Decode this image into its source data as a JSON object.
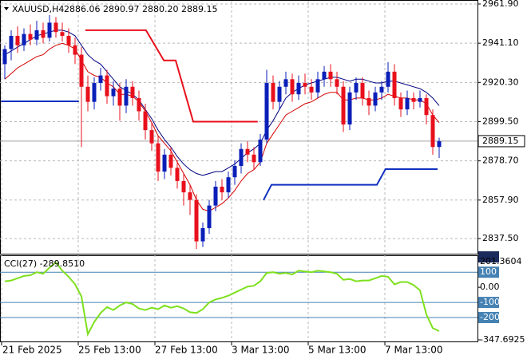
{
  "chart_data": [
    {
      "type": "candlestick",
      "symbol": "XAUUSD,H4",
      "ohlc_text": "2886.06 2890.97 2880.20 2889.15",
      "ylim": [
        2829.46,
        2964.02
      ],
      "yticks": [
        {
          "value": 2961.9,
          "label": "2961.90"
        },
        {
          "value": 2941.1,
          "label": "2941.10"
        },
        {
          "value": 2920.3,
          "label": "2920.30"
        },
        {
          "value": 2899.5,
          "label": "2899.50"
        },
        {
          "value": 2878.7,
          "label": "2878.70"
        },
        {
          "value": 2857.9,
          "label": "2857.90"
        },
        {
          "value": 2837.5,
          "label": "2837.50"
        }
      ],
      "xticks": [
        {
          "value": -0.5,
          "label": "21 Feb 2025"
        },
        {
          "value": 11.5,
          "label": "25 Feb 13:00"
        },
        {
          "value": 23.5,
          "label": "27 Feb 13:00"
        },
        {
          "value": 35.5,
          "label": "3 Mar 13:00"
        },
        {
          "value": 47.5,
          "label": "5 Mar 13:00"
        },
        {
          "value": 59.5,
          "label": "7 Mar 13:00"
        }
      ],
      "grid": true,
      "up_color": "#0a1fb8",
      "down_color": "#e8101c",
      "open": [
        2930,
        2938,
        2945,
        2940,
        2946,
        2943,
        2948,
        2944,
        2952,
        2947,
        2945,
        2940,
        2935,
        2918,
        2910,
        2920,
        2924,
        2913,
        2917,
        2908,
        2918,
        2912,
        2905,
        2895,
        2888,
        2873,
        2882,
        2875,
        2868,
        2862,
        2858,
        2836,
        2843,
        2855,
        2865,
        2862,
        2870,
        2876,
        2885,
        2882,
        2878,
        2890,
        2920,
        2910,
        2918,
        2922,
        2914,
        2920,
        2918,
        2915,
        2922,
        2926,
        2922,
        2918,
        2898,
        2915,
        2920,
        2912,
        2908,
        2915,
        2918,
        2926,
        2912,
        2906,
        2912,
        2910,
        2912,
        2903,
        2886.06
      ],
      "high": [
        2940,
        2948,
        2950,
        2949,
        2951,
        2953,
        2952,
        2956,
        2955,
        2952,
        2949,
        2944,
        2939,
        2924,
        2923,
        2928,
        2927,
        2921,
        2920,
        2922,
        2921,
        2916,
        2909,
        2899,
        2892,
        2885,
        2886,
        2879,
        2872,
        2866,
        2861,
        2846,
        2858,
        2868,
        2869,
        2873,
        2879,
        2888,
        2889,
        2886,
        2893,
        2927,
        2924,
        2921,
        2926,
        2925,
        2924,
        2925,
        2922,
        2926,
        2929,
        2930,
        2926,
        2921,
        2918,
        2923,
        2923,
        2916,
        2918,
        2921,
        2931,
        2930,
        2915,
        2916,
        2915,
        2916,
        2914,
        2906,
        2890.97
      ],
      "low": [
        2922,
        2932,
        2936,
        2937,
        2940,
        2940,
        2941,
        2942,
        2944,
        2942,
        2936,
        2930,
        2886,
        2905,
        2906,
        2916,
        2909,
        2908,
        2900,
        2904,
        2908,
        2900,
        2890,
        2884,
        2868,
        2869,
        2871,
        2864,
        2855,
        2850,
        2832,
        2833,
        2840,
        2852,
        2858,
        2859,
        2866,
        2872,
        2878,
        2874,
        2876,
        2888,
        2906,
        2906,
        2914,
        2910,
        2911,
        2914,
        2911,
        2912,
        2918,
        2918,
        2914,
        2894,
        2895,
        2911,
        2908,
        2903,
        2905,
        2911,
        2915,
        2908,
        2902,
        2903,
        2906,
        2907,
        2898,
        2882,
        2880.2
      ],
      "close": [
        2938,
        2945,
        2940,
        2946,
        2943,
        2948,
        2944,
        2952,
        2947,
        2945,
        2940,
        2935,
        2918,
        2910,
        2920,
        2924,
        2913,
        2917,
        2908,
        2918,
        2912,
        2905,
        2895,
        2888,
        2873,
        2882,
        2875,
        2868,
        2862,
        2858,
        2836,
        2843,
        2855,
        2865,
        2862,
        2870,
        2876,
        2885,
        2882,
        2878,
        2890,
        2920,
        2910,
        2918,
        2922,
        2914,
        2920,
        2918,
        2915,
        2922,
        2926,
        2922,
        2918,
        2898,
        2915,
        2920,
        2912,
        2908,
        2915,
        2918,
        2926,
        2912,
        2906,
        2912,
        2910,
        2912,
        2903,
        2886.06,
        2889.15
      ],
      "lines": [
        {
          "color": "#000080",
          "width": 1,
          "values": [
            2935,
            2937,
            2939,
            2941,
            2943,
            2945,
            2946,
            2947,
            2948,
            2948,
            2947,
            2945,
            2940,
            2935,
            2932,
            2930,
            2926,
            2922,
            2918,
            2916,
            2914,
            2911,
            2906,
            2901,
            2895,
            2890,
            2886,
            2881,
            2877,
            2874,
            2872,
            2871,
            2872,
            2873,
            2873,
            2875,
            2877,
            2880,
            2883,
            2885,
            2888,
            2895,
            2900,
            2906,
            2912,
            2915,
            2917,
            2919,
            2920,
            2921,
            2922,
            2923,
            2923,
            2922,
            2921,
            2922,
            2922,
            2921,
            2920,
            2920,
            2921,
            2921,
            2920,
            2919,
            2918,
            2917,
            2915,
            2912,
            2908
          ]
        },
        {
          "color": "#d40000",
          "width": 1,
          "values": [
            2922,
            2925,
            2928,
            2930,
            2932,
            2934,
            2935,
            2938,
            2940,
            2941,
            2940,
            2938,
            2932,
            2926,
            2924,
            2923,
            2920,
            2918,
            2914,
            2914,
            2913,
            2910,
            2905,
            2899,
            2892,
            2888,
            2884,
            2878,
            2872,
            2866,
            2858,
            2853,
            2852,
            2854,
            2856,
            2859,
            2863,
            2868,
            2872,
            2874,
            2878,
            2888,
            2893,
            2898,
            2903,
            2905,
            2907,
            2909,
            2910,
            2912,
            2914,
            2915,
            2915,
            2911,
            2911,
            2912,
            2912,
            2911,
            2911,
            2912,
            2914,
            2913,
            2912,
            2912,
            2911,
            2911,
            2909,
            2903,
            2899
          ]
        }
      ],
      "steps": [
        {
          "color": "#e8101c",
          "x": [
            12.6,
            22.1,
            24.9,
            26.75,
            29.5,
            39.6
          ],
          "values": [
            2948,
            2948,
            2932,
            2932,
            2899.5,
            2899.5
          ]
        },
        {
          "color": "#1030c0",
          "x": [
            -0.6,
            11.6
          ],
          "values": [
            2910.3,
            2910.3
          ]
        },
        {
          "color": "#1030c0",
          "x": [
            40.5,
            41.75,
            58.25,
            59.6,
            67.75
          ],
          "values": [
            2857.9,
            2866,
            2866,
            2874.3,
            2874.3
          ]
        }
      ],
      "last_price_line_color": "#a0a0a0"
    },
    {
      "type": "line",
      "indicator_label": "CCI(27) -289.8510",
      "color": "#7ee01e",
      "ylim": [
        -347.6925,
        201.3604
      ],
      "yticks": [
        201.3604,
        100,
        {
          "value": 0,
          "label": "0.00"
        },
        -100,
        -200,
        -347.6925
      ],
      "levels": [
        100,
        -100,
        -200
      ],
      "level_color": "#4682b4",
      "values": [
        40,
        45,
        60,
        75,
        80,
        100,
        90,
        130,
        165,
        110,
        70,
        20,
        -60,
        -310,
        -230,
        -170,
        -130,
        -150,
        -120,
        -100,
        -110,
        -140,
        -150,
        -135,
        -145,
        -120,
        -135,
        -125,
        -140,
        -165,
        -170,
        -145,
        -100,
        -80,
        -70,
        -55,
        -35,
        -15,
        5,
        10,
        40,
        95,
        100,
        90,
        95,
        85,
        110,
        105,
        100,
        110,
        105,
        100,
        90,
        50,
        55,
        40,
        45,
        45,
        60,
        75,
        70,
        20,
        35,
        35,
        15,
        -20,
        -180,
        -270,
        -289.851
      ]
    }
  ]
}
